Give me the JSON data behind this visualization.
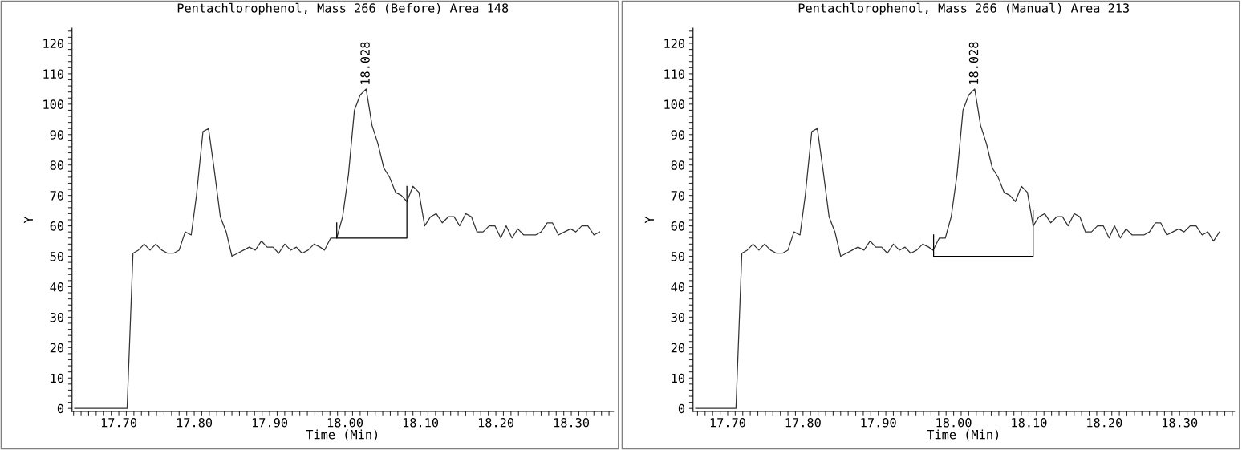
{
  "chart_data": [
    {
      "type": "line",
      "title": "Pentachlorophenol, Mass 266 (Before) Area 148",
      "xlabel": "Time (Min)",
      "ylabel": "Y",
      "series": [
        {
          "color": "#333333",
          "x": [
            17.6415,
            17.711,
            17.7188,
            17.7259,
            17.7337,
            17.7414,
            17.749,
            17.757,
            17.7648,
            17.7726,
            17.78,
            17.788,
            17.796,
            17.803,
            17.8116,
            17.819,
            17.8268,
            17.8346,
            17.8424,
            17.85,
            17.8576,
            17.8654,
            17.873,
            17.881,
            17.889,
            17.8967,
            17.9044,
            17.912,
            17.92,
            17.928,
            17.9355,
            17.943,
            17.951,
            17.959,
            17.967,
            17.9727,
            17.981,
            17.989,
            17.9968,
            18.0046,
            18.0124,
            18.02,
            18.028,
            18.0358,
            18.0436,
            18.0514,
            18.059,
            18.067,
            18.0747,
            18.082,
            18.09,
            18.098,
            18.1056,
            18.1134,
            18.121,
            18.129,
            18.137,
            18.1445,
            18.152,
            18.16,
            18.1676,
            18.175,
            18.183,
            18.191,
            18.1987,
            18.2065,
            18.2136,
            18.2214,
            18.229,
            18.237,
            18.2448,
            18.2526,
            18.26,
            18.268,
            18.275,
            18.283,
            18.291,
            18.299,
            18.306,
            18.314,
            18.322,
            18.33,
            18.3375
          ],
          "values": [
            0,
            0,
            51,
            52,
            54,
            52,
            54,
            52,
            51,
            51,
            52,
            58,
            57,
            70,
            91,
            92,
            78,
            63,
            58,
            50,
            51,
            52,
            53,
            52,
            55,
            53,
            53,
            51,
            54,
            52,
            53,
            51,
            52,
            54,
            53,
            52,
            56,
            56,
            63,
            77,
            98,
            103,
            105,
            93,
            87,
            79,
            76,
            71,
            70,
            68,
            73,
            71,
            60,
            63,
            64,
            61,
            63,
            63,
            60,
            64,
            63,
            58,
            58,
            60,
            60,
            56,
            60,
            56,
            59,
            57,
            57,
            57,
            58,
            61,
            61,
            57,
            58,
            59,
            58,
            60,
            60,
            57,
            58
          ]
        },
        {
          "type": "line",
          "color": "#000000",
          "x": [
            17.989,
            17.989,
            18.082,
            18.082
          ],
          "values": [
            61,
            56,
            56,
            73
          ]
        }
      ],
      "annotations": [
        {
          "text": "18.028",
          "x": 18.028,
          "y": 105
        }
      ],
      "xlim": [
        17.638,
        18.356
      ],
      "ylim": [
        -1,
        125
      ],
      "xticks": [
        {
          "value": 17.64,
          "label": null
        },
        {
          "value": 17.65,
          "label": null
        },
        {
          "value": 17.66,
          "label": null
        },
        {
          "value": 17.67,
          "label": null
        },
        {
          "value": 17.68,
          "label": null
        },
        {
          "value": 17.69,
          "label": null
        },
        {
          "value": 17.7,
          "label": "17.70"
        },
        {
          "value": 17.71,
          "label": null
        },
        {
          "value": 17.72,
          "label": null
        },
        {
          "value": 17.73,
          "label": null
        },
        {
          "value": 17.74,
          "label": null
        },
        {
          "value": 17.75,
          "label": null
        },
        {
          "value": 17.76,
          "label": null
        },
        {
          "value": 17.77,
          "label": null
        },
        {
          "value": 17.78,
          "label": null
        },
        {
          "value": 17.79,
          "label": null
        },
        {
          "value": 17.8,
          "label": "17.80"
        },
        {
          "value": 17.81,
          "label": null
        },
        {
          "value": 17.82,
          "label": null
        },
        {
          "value": 17.83,
          "label": null
        },
        {
          "value": 17.84,
          "label": null
        },
        {
          "value": 17.85,
          "label": null
        },
        {
          "value": 17.86,
          "label": null
        },
        {
          "value": 17.87,
          "label": null
        },
        {
          "value": 17.88,
          "label": null
        },
        {
          "value": 17.89,
          "label": null
        },
        {
          "value": 17.9,
          "label": "17.90"
        },
        {
          "value": 17.91,
          "label": null
        },
        {
          "value": 17.92,
          "label": null
        },
        {
          "value": 17.93,
          "label": null
        },
        {
          "value": 17.94,
          "label": null
        },
        {
          "value": 17.95,
          "label": null
        },
        {
          "value": 17.96,
          "label": null
        },
        {
          "value": 17.97,
          "label": null
        },
        {
          "value": 17.98,
          "label": null
        },
        {
          "value": 17.99,
          "label": null
        },
        {
          "value": 18.0,
          "label": "18.00"
        },
        {
          "value": 18.01,
          "label": null
        },
        {
          "value": 18.02,
          "label": null
        },
        {
          "value": 18.03,
          "label": null
        },
        {
          "value": 18.04,
          "label": null
        },
        {
          "value": 18.05,
          "label": null
        },
        {
          "value": 18.06,
          "label": null
        },
        {
          "value": 18.07,
          "label": null
        },
        {
          "value": 18.08,
          "label": null
        },
        {
          "value": 18.09,
          "label": null
        },
        {
          "value": 18.1,
          "label": "18.10"
        },
        {
          "value": 18.11,
          "label": null
        },
        {
          "value": 18.12,
          "label": null
        },
        {
          "value": 18.13,
          "label": null
        },
        {
          "value": 18.14,
          "label": null
        },
        {
          "value": 18.15,
          "label": null
        },
        {
          "value": 18.16,
          "label": null
        },
        {
          "value": 18.17,
          "label": null
        },
        {
          "value": 18.18,
          "label": null
        },
        {
          "value": 18.19,
          "label": null
        },
        {
          "value": 18.2,
          "label": "18.20"
        },
        {
          "value": 18.21,
          "label": null
        },
        {
          "value": 18.22,
          "label": null
        },
        {
          "value": 18.23,
          "label": null
        },
        {
          "value": 18.24,
          "label": null
        },
        {
          "value": 18.25,
          "label": null
        },
        {
          "value": 18.26,
          "label": null
        },
        {
          "value": 18.27,
          "label": null
        },
        {
          "value": 18.28,
          "label": null
        },
        {
          "value": 18.29,
          "label": null
        },
        {
          "value": 18.3,
          "label": "18.30"
        },
        {
          "value": 18.31,
          "label": null
        },
        {
          "value": 18.32,
          "label": null
        },
        {
          "value": 18.33,
          "label": null
        },
        {
          "value": 18.34,
          "label": null
        },
        {
          "value": 18.35,
          "label": null
        }
      ],
      "yticks": [
        0,
        {
          "value": 2,
          "label": null
        },
        {
          "value": 4,
          "label": null
        },
        {
          "value": 6,
          "label": null
        },
        {
          "value": 8,
          "label": null
        },
        10,
        {
          "value": 12,
          "label": null
        },
        {
          "value": 14,
          "label": null
        },
        {
          "value": 16,
          "label": null
        },
        {
          "value": 18,
          "label": null
        },
        20,
        {
          "value": 22,
          "label": null
        },
        {
          "value": 24,
          "label": null
        },
        {
          "value": 26,
          "label": null
        },
        {
          "value": 28,
          "label": null
        },
        30,
        {
          "value": 32,
          "label": null
        },
        {
          "value": 34,
          "label": null
        },
        {
          "value": 36,
          "label": null
        },
        {
          "value": 38,
          "label": null
        },
        40,
        {
          "value": 42,
          "label": null
        },
        {
          "value": 44,
          "label": null
        },
        {
          "value": 46,
          "label": null
        },
        {
          "value": 48,
          "label": null
        },
        50,
        {
          "value": 52,
          "label": null
        },
        {
          "value": 54,
          "label": null
        },
        {
          "value": 56,
          "label": null
        },
        {
          "value": 58,
          "label": null
        },
        60,
        {
          "value": 62,
          "label": null
        },
        {
          "value": 64,
          "label": null
        },
        {
          "value": 66,
          "label": null
        },
        {
          "value": 68,
          "label": null
        },
        70,
        {
          "value": 72,
          "label": null
        },
        {
          "value": 74,
          "label": null
        },
        {
          "value": 76,
          "label": null
        },
        {
          "value": 78,
          "label": null
        },
        80,
        {
          "value": 82,
          "label": null
        },
        {
          "value": 84,
          "label": null
        },
        {
          "value": 86,
          "label": null
        },
        {
          "value": 88,
          "label": null
        },
        90,
        {
          "value": 92,
          "label": null
        },
        {
          "value": 94,
          "label": null
        },
        {
          "value": 96,
          "label": null
        },
        {
          "value": 98,
          "label": null
        },
        100,
        {
          "value": 102,
          "label": null
        },
        {
          "value": 104,
          "label": null
        },
        {
          "value": 106,
          "label": null
        },
        {
          "value": 108,
          "label": null
        },
        110,
        {
          "value": 112,
          "label": null
        },
        {
          "value": 114,
          "label": null
        },
        {
          "value": 116,
          "label": null
        },
        {
          "value": 118,
          "label": null
        },
        120,
        {
          "value": 122,
          "label": null
        },
        {
          "value": 124,
          "label": null
        }
      ]
    },
    {
      "type": "line",
      "title": "Pentachlorophenol, Mass 266 (Manual) Area 213",
      "xlabel": "Time (Min)",
      "ylabel": "Y",
      "series": [
        {
          "color": "#333333",
          "x": [
            17.6575,
            17.711,
            17.7188,
            17.7259,
            17.7337,
            17.7414,
            17.749,
            17.757,
            17.7648,
            17.7726,
            17.78,
            17.788,
            17.796,
            17.803,
            17.8116,
            17.819,
            17.8268,
            17.8346,
            17.8424,
            17.85,
            17.8576,
            17.8654,
            17.873,
            17.881,
            17.889,
            17.8967,
            17.9044,
            17.912,
            17.92,
            17.928,
            17.9355,
            17.943,
            17.951,
            17.959,
            17.967,
            17.9727,
            17.981,
            17.989,
            17.9968,
            18.0046,
            18.0124,
            18.02,
            18.028,
            18.0358,
            18.0436,
            18.0514,
            18.059,
            18.067,
            18.0747,
            18.082,
            18.09,
            18.098,
            18.1056,
            18.1134,
            18.121,
            18.129,
            18.137,
            18.1445,
            18.152,
            18.16,
            18.1676,
            18.175,
            18.183,
            18.191,
            18.1987,
            18.2065,
            18.2136,
            18.2214,
            18.229,
            18.237,
            18.2448,
            18.2526,
            18.26,
            18.268,
            18.275,
            18.283,
            18.291,
            18.299,
            18.306,
            18.314,
            18.322,
            18.33,
            18.3375,
            18.345,
            18.353
          ],
          "values": [
            0,
            0,
            51,
            52,
            54,
            52,
            54,
            52,
            51,
            51,
            52,
            58,
            57,
            70,
            91,
            92,
            78,
            63,
            58,
            50,
            51,
            52,
            53,
            52,
            55,
            53,
            53,
            51,
            54,
            52,
            53,
            51,
            52,
            54,
            53,
            52,
            56,
            56,
            63,
            77,
            98,
            103,
            105,
            93,
            87,
            79,
            76,
            71,
            70,
            68,
            73,
            71,
            60,
            63,
            64,
            61,
            63,
            63,
            60,
            64,
            63,
            58,
            58,
            60,
            60,
            56,
            60,
            56,
            59,
            57,
            57,
            57,
            58,
            61,
            61,
            57,
            58,
            59,
            58,
            60,
            60,
            57,
            58,
            55,
            58
          ]
        },
        {
          "type": "line",
          "color": "#000000",
          "x": [
            17.9734,
            17.9734,
            18.1056,
            18.1056
          ],
          "values": [
            57,
            50,
            50,
            65
          ]
        }
      ],
      "annotations": [
        {
          "text": "18.028",
          "x": 18.028,
          "y": 105
        }
      ],
      "xlim": [
        17.654,
        18.373
      ],
      "ylim": [
        -1,
        125
      ],
      "xticks": [
        {
          "value": 17.66,
          "label": null
        },
        {
          "value": 17.67,
          "label": null
        },
        {
          "value": 17.68,
          "label": null
        },
        {
          "value": 17.69,
          "label": null
        },
        {
          "value": 17.7,
          "label": "17.70"
        },
        {
          "value": 17.71,
          "label": null
        },
        {
          "value": 17.72,
          "label": null
        },
        {
          "value": 17.73,
          "label": null
        },
        {
          "value": 17.74,
          "label": null
        },
        {
          "value": 17.75,
          "label": null
        },
        {
          "value": 17.76,
          "label": null
        },
        {
          "value": 17.77,
          "label": null
        },
        {
          "value": 17.78,
          "label": null
        },
        {
          "value": 17.79,
          "label": null
        },
        {
          "value": 17.8,
          "label": "17.80"
        },
        {
          "value": 17.81,
          "label": null
        },
        {
          "value": 17.82,
          "label": null
        },
        {
          "value": 17.83,
          "label": null
        },
        {
          "value": 17.84,
          "label": null
        },
        {
          "value": 17.85,
          "label": null
        },
        {
          "value": 17.86,
          "label": null
        },
        {
          "value": 17.87,
          "label": null
        },
        {
          "value": 17.88,
          "label": null
        },
        {
          "value": 17.89,
          "label": null
        },
        {
          "value": 17.9,
          "label": "17.90"
        },
        {
          "value": 17.91,
          "label": null
        },
        {
          "value": 17.92,
          "label": null
        },
        {
          "value": 17.93,
          "label": null
        },
        {
          "value": 17.94,
          "label": null
        },
        {
          "value": 17.95,
          "label": null
        },
        {
          "value": 17.96,
          "label": null
        },
        {
          "value": 17.97,
          "label": null
        },
        {
          "value": 17.98,
          "label": null
        },
        {
          "value": 17.99,
          "label": null
        },
        {
          "value": 18.0,
          "label": "18.00"
        },
        {
          "value": 18.01,
          "label": null
        },
        {
          "value": 18.02,
          "label": null
        },
        {
          "value": 18.03,
          "label": null
        },
        {
          "value": 18.04,
          "label": null
        },
        {
          "value": 18.05,
          "label": null
        },
        {
          "value": 18.06,
          "label": null
        },
        {
          "value": 18.07,
          "label": null
        },
        {
          "value": 18.08,
          "label": null
        },
        {
          "value": 18.09,
          "label": null
        },
        {
          "value": 18.1,
          "label": "18.10"
        },
        {
          "value": 18.11,
          "label": null
        },
        {
          "value": 18.12,
          "label": null
        },
        {
          "value": 18.13,
          "label": null
        },
        {
          "value": 18.14,
          "label": null
        },
        {
          "value": 18.15,
          "label": null
        },
        {
          "value": 18.16,
          "label": null
        },
        {
          "value": 18.17,
          "label": null
        },
        {
          "value": 18.18,
          "label": null
        },
        {
          "value": 18.19,
          "label": null
        },
        {
          "value": 18.2,
          "label": "18.20"
        },
        {
          "value": 18.21,
          "label": null
        },
        {
          "value": 18.22,
          "label": null
        },
        {
          "value": 18.23,
          "label": null
        },
        {
          "value": 18.24,
          "label": null
        },
        {
          "value": 18.25,
          "label": null
        },
        {
          "value": 18.26,
          "label": null
        },
        {
          "value": 18.27,
          "label": null
        },
        {
          "value": 18.28,
          "label": null
        },
        {
          "value": 18.29,
          "label": null
        },
        {
          "value": 18.3,
          "label": "18.30"
        },
        {
          "value": 18.31,
          "label": null
        },
        {
          "value": 18.32,
          "label": null
        },
        {
          "value": 18.33,
          "label": null
        },
        {
          "value": 18.34,
          "label": null
        },
        {
          "value": 18.35,
          "label": null
        },
        {
          "value": 18.36,
          "label": null
        },
        {
          "value": 18.37,
          "label": null
        }
      ],
      "yticks": [
        0,
        {
          "value": 2,
          "label": null
        },
        {
          "value": 4,
          "label": null
        },
        {
          "value": 6,
          "label": null
        },
        {
          "value": 8,
          "label": null
        },
        10,
        {
          "value": 12,
          "label": null
        },
        {
          "value": 14,
          "label": null
        },
        {
          "value": 16,
          "label": null
        },
        {
          "value": 18,
          "label": null
        },
        20,
        {
          "value": 22,
          "label": null
        },
        {
          "value": 24,
          "label": null
        },
        {
          "value": 26,
          "label": null
        },
        {
          "value": 28,
          "label": null
        },
        30,
        {
          "value": 32,
          "label": null
        },
        {
          "value": 34,
          "label": null
        },
        {
          "value": 36,
          "label": null
        },
        {
          "value": 38,
          "label": null
        },
        40,
        {
          "value": 42,
          "label": null
        },
        {
          "value": 44,
          "label": null
        },
        {
          "value": 46,
          "label": null
        },
        {
          "value": 48,
          "label": null
        },
        50,
        {
          "value": 52,
          "label": null
        },
        {
          "value": 54,
          "label": null
        },
        {
          "value": 56,
          "label": null
        },
        {
          "value": 58,
          "label": null
        },
        60,
        {
          "value": 62,
          "label": null
        },
        {
          "value": 64,
          "label": null
        },
        {
          "value": 66,
          "label": null
        },
        {
          "value": 68,
          "label": null
        },
        70,
        {
          "value": 72,
          "label": null
        },
        {
          "value": 74,
          "label": null
        },
        {
          "value": 76,
          "label": null
        },
        {
          "value": 78,
          "label": null
        },
        80,
        {
          "value": 82,
          "label": null
        },
        {
          "value": 84,
          "label": null
        },
        {
          "value": 86,
          "label": null
        },
        {
          "value": 88,
          "label": null
        },
        90,
        {
          "value": 92,
          "label": null
        },
        {
          "value": 94,
          "label": null
        },
        {
          "value": 96,
          "label": null
        },
        {
          "value": 98,
          "label": null
        },
        100,
        {
          "value": 102,
          "label": null
        },
        {
          "value": 104,
          "label": null
        },
        {
          "value": 106,
          "label": null
        },
        {
          "value": 108,
          "label": null
        },
        110,
        {
          "value": 112,
          "label": null
        },
        {
          "value": 114,
          "label": null
        },
        {
          "value": 116,
          "label": null
        },
        {
          "value": 118,
          "label": null
        },
        120,
        {
          "value": 122,
          "label": null
        },
        {
          "value": 124,
          "label": null
        }
      ]
    }
  ]
}
